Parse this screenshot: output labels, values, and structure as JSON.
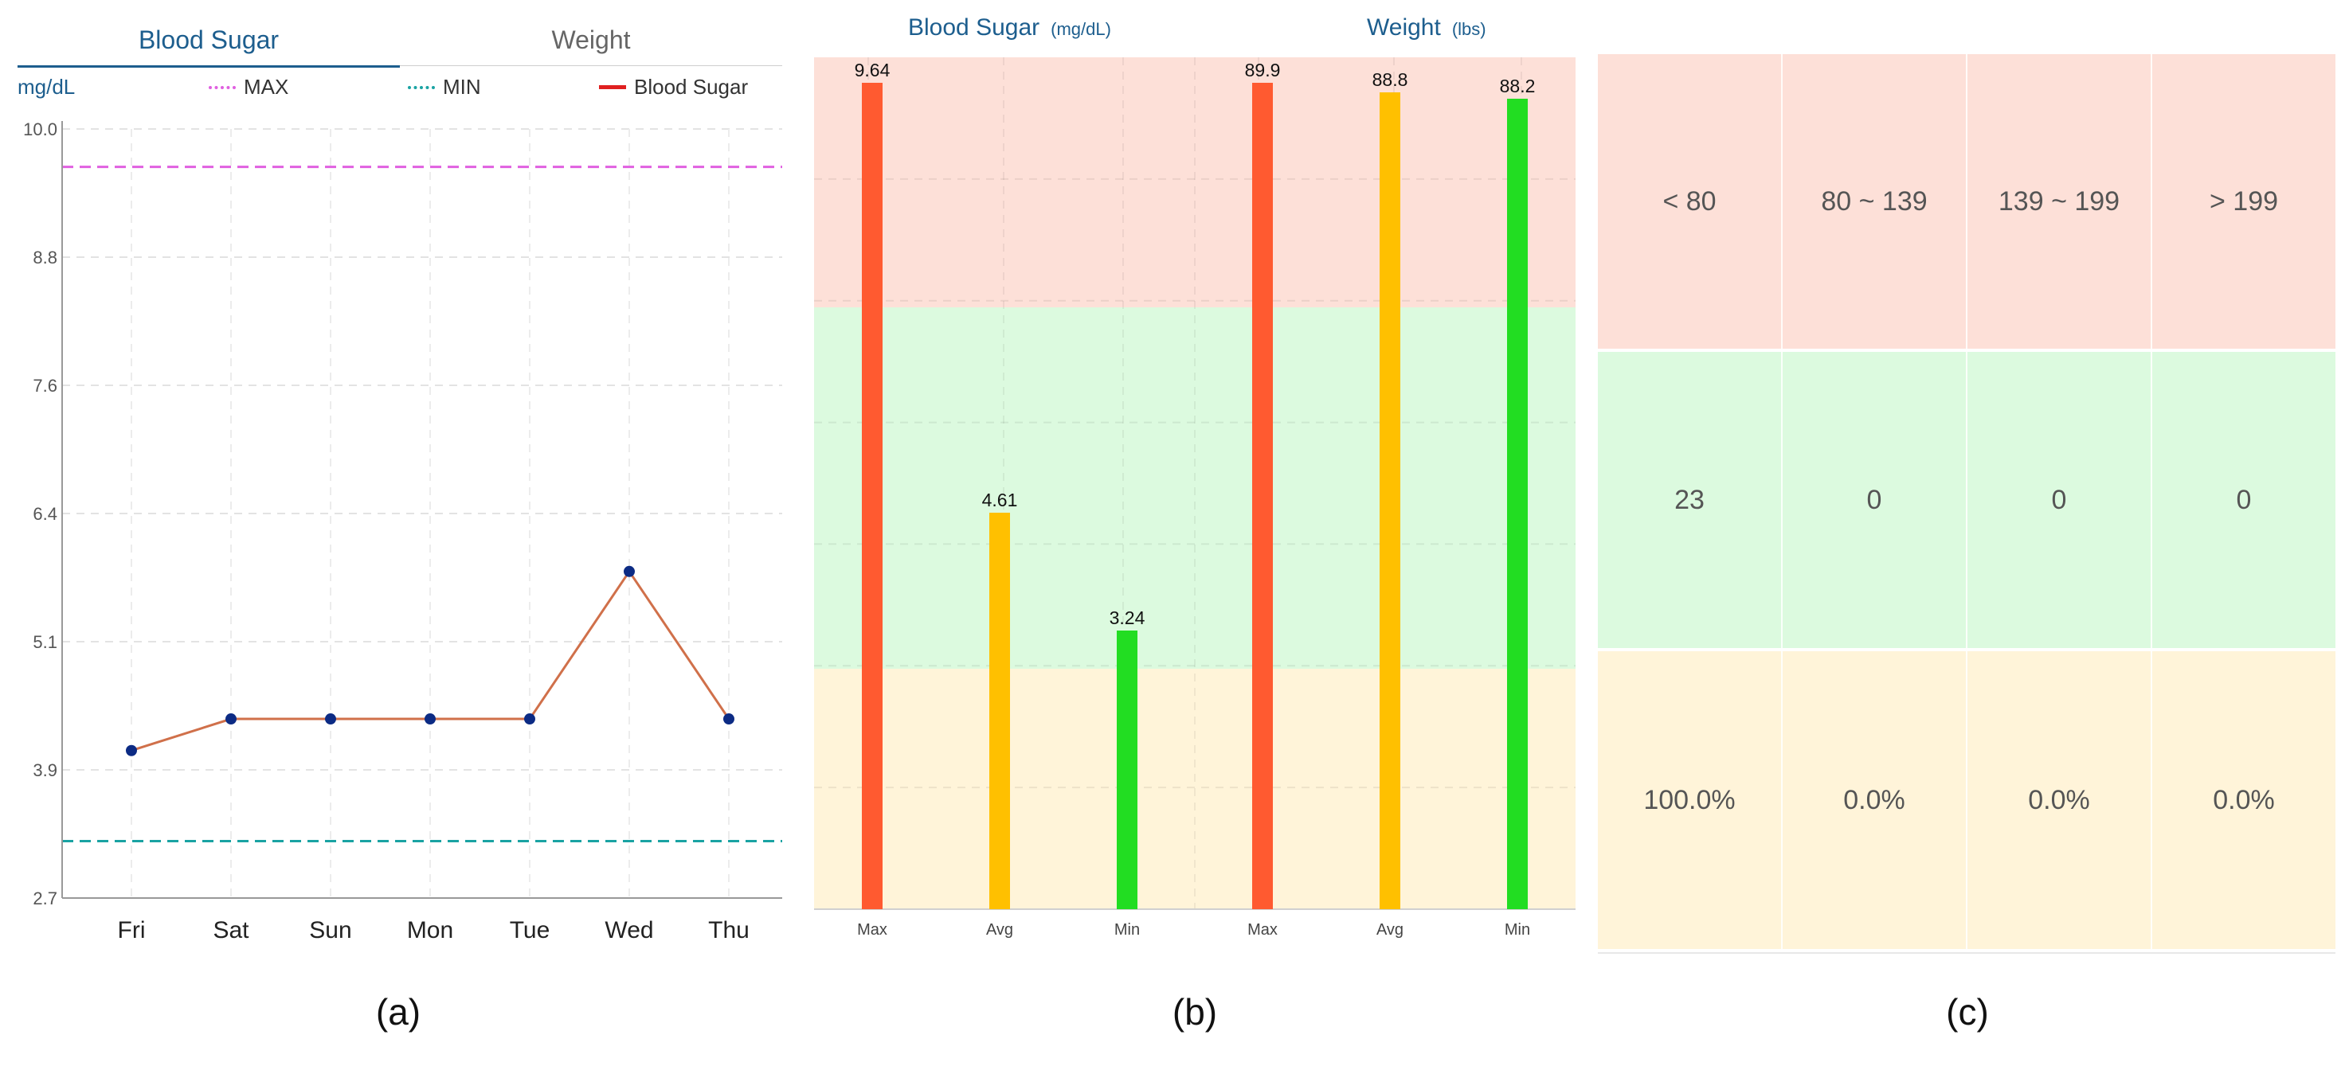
{
  "panel_a": {
    "tabs": [
      {
        "label": "Blood Sugar",
        "active": true
      },
      {
        "label": "Weight",
        "active": false
      }
    ],
    "unit": "mg/dL",
    "legend": [
      {
        "label": "MAX",
        "color": "#e060e0",
        "style": "dotted"
      },
      {
        "label": "MIN",
        "color": "#1aa3a3",
        "style": "dotted"
      },
      {
        "label": "Blood Sugar",
        "color": "#e02020",
        "style": "solid"
      }
    ],
    "caption": "(a)"
  },
  "panel_b": {
    "headers": [
      {
        "title": "Blood Sugar",
        "unit": "(mg/dL)"
      },
      {
        "title": "Weight",
        "unit": "(lbs)"
      }
    ],
    "caption": "(b)"
  },
  "panel_c": {
    "rows": [
      {
        "cells": [
          "< 80",
          "80 ~ 139",
          "139 ~ 199",
          "> 199"
        ],
        "color": "#fde0d8"
      },
      {
        "cells": [
          "23",
          "0",
          "0",
          "0"
        ],
        "color": "#dcfadf"
      },
      {
        "cells": [
          "100.0%",
          "0.0%",
          "0.0%",
          "0.0%"
        ],
        "color": "#fff4d9"
      }
    ],
    "caption": "(c)"
  },
  "chart_data": [
    {
      "type": "line",
      "categories": [
        "Fri",
        "Sat",
        "Sun",
        "Mon",
        "Tue",
        "Wed",
        "Thu"
      ],
      "series": [
        {
          "name": "Blood Sugar",
          "values": [
            4.1,
            4.4,
            4.4,
            4.4,
            4.4,
            5.8,
            4.4
          ],
          "color": "#d0704a",
          "marker_color": "#0c2b84"
        }
      ],
      "reference_lines": [
        {
          "name": "MAX",
          "value": 9.64,
          "color": "#e060e0"
        },
        {
          "name": "MIN",
          "value": 3.24,
          "color": "#1aa3a3"
        }
      ],
      "yticks": [
        "10.0",
        "8.8",
        "7.6",
        "6.4",
        "5.1",
        "3.9",
        "2.7"
      ],
      "ylim": [
        2.7,
        10.0
      ],
      "ylabel": "mg/dL",
      "grid": true
    },
    {
      "type": "bar",
      "groups": [
        {
          "name": "Blood Sugar",
          "categories": [
            "Max",
            "Avg",
            "Min"
          ],
          "values": [
            9.64,
            4.61,
            3.24
          ],
          "labels": [
            "9.64",
            "4.61",
            "3.24"
          ],
          "ylim": [
            0,
            10
          ]
        },
        {
          "name": "Weight",
          "categories": [
            "Max",
            "Avg",
            "Min"
          ],
          "values": [
            89.9,
            88.8,
            88.2
          ],
          "labels": [
            "89.9",
            "88.8",
            "88.2"
          ],
          "ylim": [
            0,
            90
          ]
        }
      ],
      "bar_colors": [
        "#ff5a30",
        "#ffc000",
        "#22dd22"
      ],
      "bands": [
        {
          "color": "#fde0d8"
        },
        {
          "color": "#dcfadf"
        },
        {
          "color": "#fff4d9"
        }
      ],
      "grid": true
    }
  ]
}
